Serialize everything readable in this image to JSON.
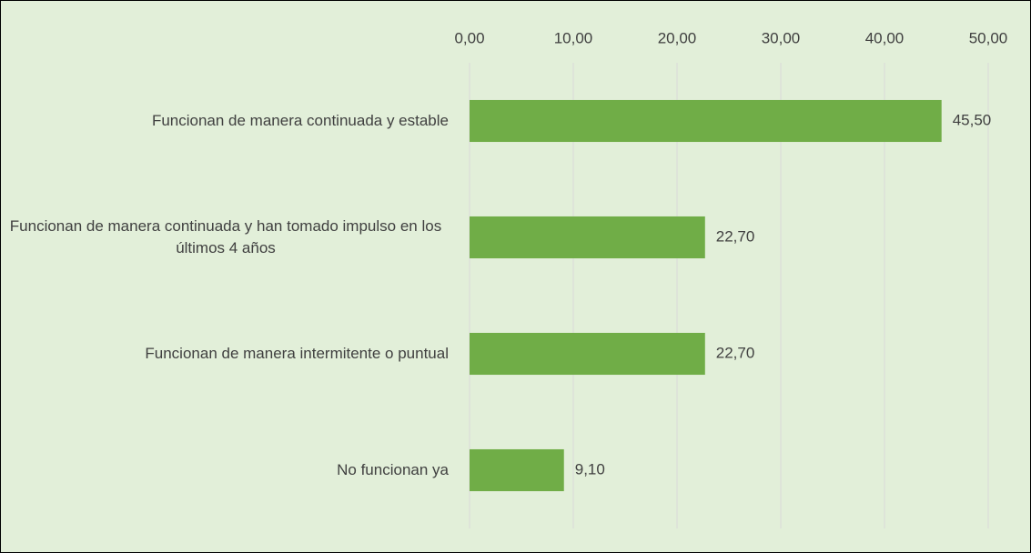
{
  "chart_data": {
    "type": "barh",
    "categories": [
      "Funcionan de manera continuada y estable",
      "Funcionan de manera continuada y han tomado impulso en los últimos 4 años",
      "Funcionan de manera intermitente o puntual",
      "No funcionan ya"
    ],
    "values": [
      45.5,
      22.7,
      22.7,
      9.1
    ],
    "value_labels": [
      "45,50",
      "22,70",
      "22,70",
      "9,10"
    ],
    "color": "#70ad47",
    "xlim": [
      0,
      50
    ],
    "xticks": [
      {
        "value": 0,
        "label": "0,00"
      },
      {
        "value": 10,
        "label": "10,00"
      },
      {
        "value": 20,
        "label": "20,00"
      },
      {
        "value": 30,
        "label": "30,00"
      },
      {
        "value": 40,
        "label": "40,00"
      },
      {
        "value": 50,
        "label": "50,00"
      }
    ],
    "grid": true
  }
}
